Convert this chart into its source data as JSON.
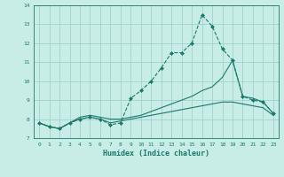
{
  "xlabel": "Humidex (Indice chaleur)",
  "x_ticks": [
    0,
    1,
    2,
    3,
    4,
    5,
    6,
    7,
    8,
    9,
    10,
    11,
    12,
    13,
    14,
    15,
    16,
    17,
    18,
    19,
    20,
    21,
    22,
    23
  ],
  "ylim": [
    7,
    14
  ],
  "xlim": [
    -0.5,
    23.5
  ],
  "y_ticks": [
    7,
    8,
    9,
    10,
    11,
    12,
    13,
    14
  ],
  "bg_color": "#c8ece6",
  "grid_color": "#99cccc",
  "line_color": "#1a7a6a",
  "line1_x": [
    0,
    1,
    2,
    3,
    4,
    5,
    6,
    7,
    8,
    9,
    10,
    11,
    12,
    13,
    14,
    15,
    16,
    17,
    18,
    19,
    20,
    21,
    22,
    23
  ],
  "line1_y": [
    7.8,
    7.6,
    7.5,
    7.8,
    8.0,
    8.1,
    8.0,
    7.7,
    7.8,
    9.1,
    9.5,
    10.0,
    10.7,
    11.5,
    11.5,
    12.0,
    13.5,
    12.9,
    11.7,
    11.1,
    9.2,
    9.0,
    8.9,
    8.3
  ],
  "line2_x": [
    0,
    1,
    2,
    3,
    4,
    5,
    6,
    7,
    8,
    9,
    10,
    11,
    12,
    13,
    14,
    15,
    16,
    17,
    18,
    19,
    20,
    21,
    22,
    23
  ],
  "line2_y": [
    7.8,
    7.6,
    7.5,
    7.8,
    8.1,
    8.2,
    8.1,
    8.0,
    8.0,
    8.1,
    8.2,
    8.4,
    8.6,
    8.8,
    9.0,
    9.2,
    9.5,
    9.7,
    10.2,
    11.1,
    9.2,
    9.1,
    8.9,
    8.3
  ],
  "line3_x": [
    0,
    1,
    2,
    3,
    4,
    5,
    6,
    7,
    8,
    9,
    10,
    11,
    12,
    13,
    14,
    15,
    16,
    17,
    18,
    19,
    20,
    21,
    22,
    23
  ],
  "line3_y": [
    7.8,
    7.6,
    7.5,
    7.8,
    8.0,
    8.1,
    8.0,
    7.8,
    7.9,
    8.0,
    8.1,
    8.2,
    8.3,
    8.4,
    8.5,
    8.6,
    8.7,
    8.8,
    8.9,
    8.9,
    8.8,
    8.7,
    8.6,
    8.2
  ]
}
